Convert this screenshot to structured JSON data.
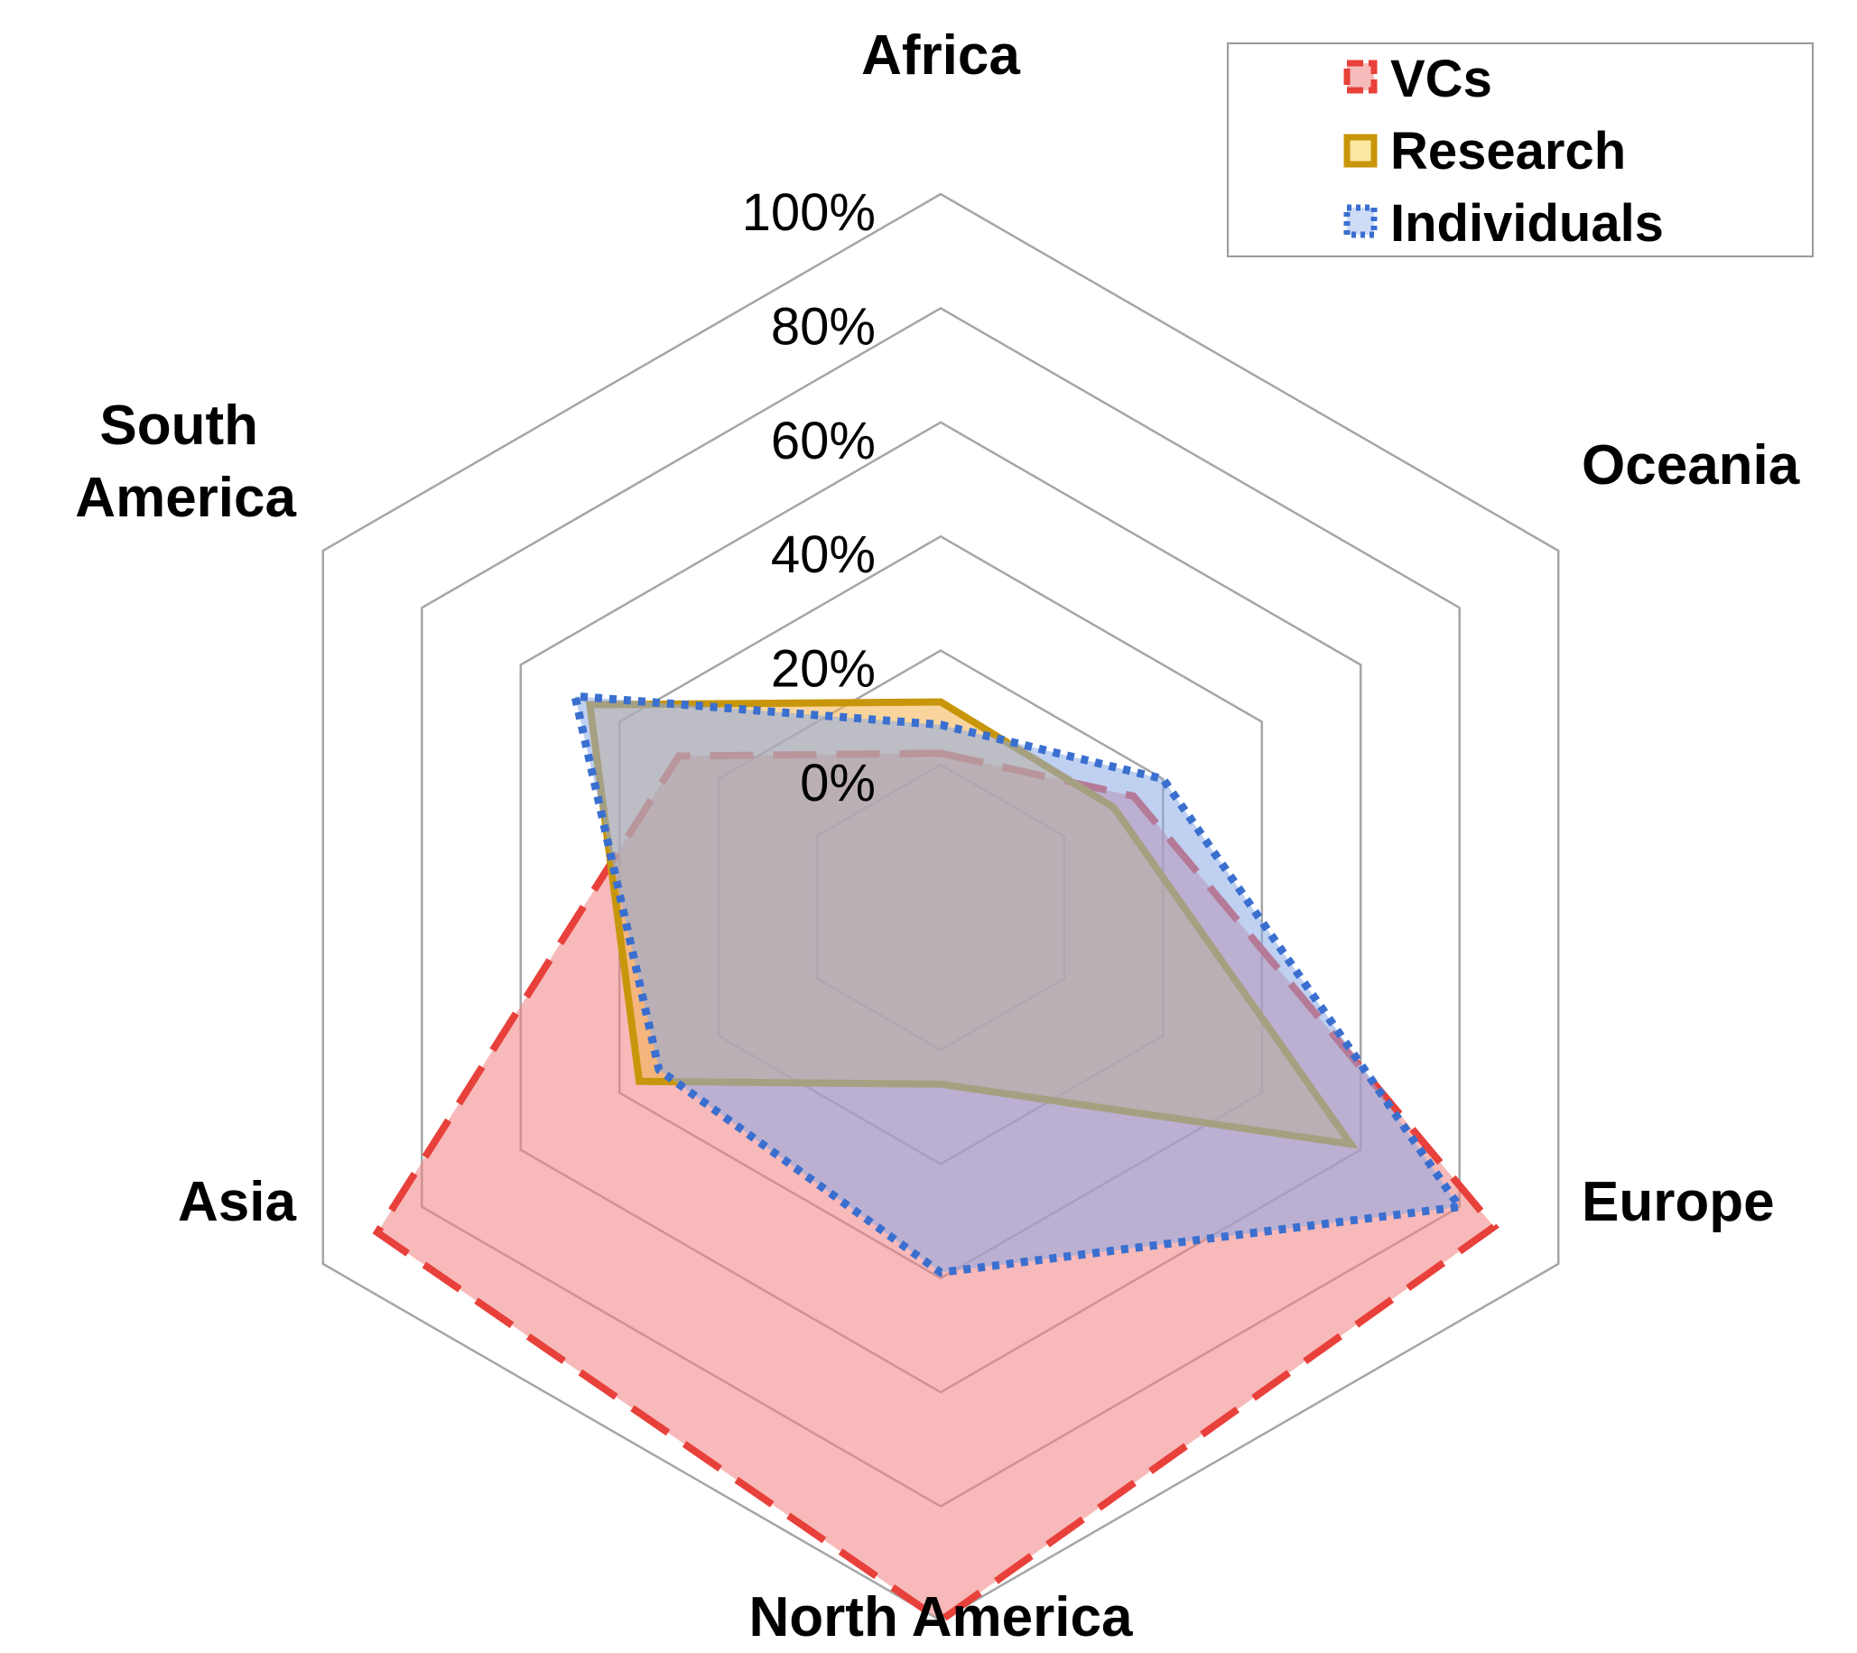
{
  "chart_data": {
    "type": "radar",
    "categories": [
      "Africa",
      "Oceania",
      "Europe",
      "North America",
      "Asia",
      "South America"
    ],
    "tick_labels": [
      "0%",
      "20%",
      "40%",
      "60%",
      "80%",
      "100%"
    ],
    "ylim": [
      0,
      100
    ],
    "grid": true,
    "legend_position": "top-right",
    "series": [
      {
        "name": "VCs",
        "values": [
          2,
          14,
          87,
          100,
          89,
          28
        ],
        "stroke": "#e8403a",
        "fill": "#f08080",
        "dash": "long-dash"
      },
      {
        "name": "Research",
        "values": [
          11,
          10,
          58,
          6,
          36,
          46
        ],
        "stroke": "#c8960a",
        "fill": "#f4b24c",
        "dash": "solid"
      },
      {
        "name": "Individuals",
        "values": [
          7,
          20,
          80,
          39,
          32,
          49
        ],
        "stroke": "#3a6fd0",
        "fill": "#8aaae6",
        "dash": "dotted"
      }
    ]
  }
}
